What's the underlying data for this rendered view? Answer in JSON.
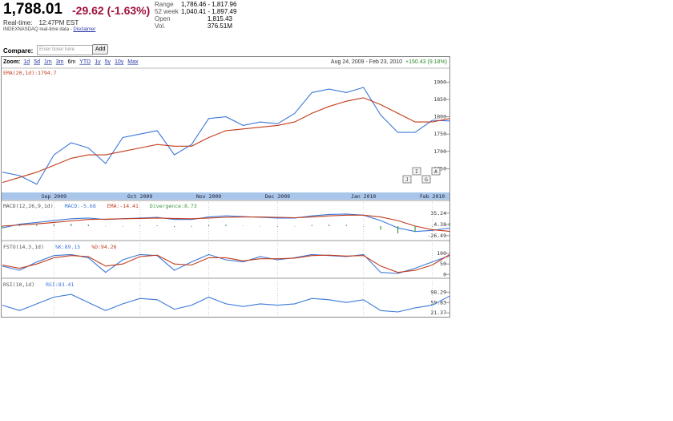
{
  "header": {
    "price": "1,788.01",
    "change": "-29.62 (-1.63%)",
    "realtime_label": "Real-time:",
    "time": "12:47PM EST",
    "source": "INDEXNASDAQ real-time data",
    "disclaimer": "Disclaimer",
    "stats": [
      [
        "Range",
        "1,786.46 - 1,817.96"
      ],
      [
        "52 week",
        "1,040.41 - 1,897.49"
      ],
      [
        "Open",
        "1,815.43"
      ],
      [
        "Vol.",
        "376.51M"
      ]
    ]
  },
  "compare": {
    "label": "Compare:",
    "placeholder": "Enter ticker here",
    "button": "Add"
  },
  "zoom": {
    "label": "Zoom:",
    "options": [
      "1d",
      "5d",
      "1m",
      "3m",
      "6m",
      "YTD",
      "1y",
      "5y",
      "10y",
      "Max"
    ],
    "range": "Aug 24, 2009 - Feb 23, 2010",
    "range_change": "+150.43 (9.18%)"
  },
  "chart_data": [
    {
      "type": "line",
      "categories": [
        null,
        null,
        null,
        "Sep 2009",
        null,
        null,
        null,
        null,
        "Oct 2009",
        null,
        null,
        null,
        "Nov 2009",
        null,
        null,
        null,
        "Dec 2009",
        null,
        null,
        null,
        null,
        "Jan 2010",
        null,
        null,
        null,
        "Feb 2010",
        null
      ],
      "series": [
        {
          "color": "#3c78d8",
          "values": [
            1640,
            1630,
            1605,
            1690,
            1725,
            1710,
            1665,
            1740,
            1750,
            1760,
            1690,
            1720,
            1795,
            1800,
            1775,
            1785,
            1780,
            1810,
            1870,
            1880,
            1870,
            1885,
            1805,
            1755,
            1755,
            1790,
            1788
          ]
        },
        {
          "name": "EMA(20,1d):1794.7",
          "color": "#c23b1c",
          "values": [
            1610,
            1625,
            1640,
            1660,
            1680,
            1690,
            1690,
            1700,
            1710,
            1720,
            1715,
            1715,
            1740,
            1760,
            1765,
            1770,
            1775,
            1785,
            1810,
            1830,
            1845,
            1855,
            1835,
            1810,
            1785,
            1785,
            1794.7
          ]
        }
      ],
      "ylim": [
        1586,
        1922
      ],
      "yticks": [
        1650,
        1700,
        1750,
        1800,
        1850,
        1900
      ],
      "annotations": [
        "J",
        "I",
        "G",
        "A"
      ]
    },
    {
      "type": "line",
      "title": "MACD(12,26,9,1d)",
      "series": [
        {
          "name": "MACD:-5.68",
          "color": "#3c78d8",
          "values": [
            -5,
            5,
            10,
            15,
            20,
            22,
            18,
            20,
            22,
            24,
            18,
            18,
            25,
            28,
            26,
            24,
            22,
            22,
            28,
            32,
            33,
            30,
            15,
            -5,
            -15,
            -12,
            -5.68
          ]
        },
        {
          "name": "EMA:-14.41",
          "color": "#c23b1c",
          "values": [
            0,
            3,
            6,
            10,
            14,
            18,
            19,
            20,
            21,
            22,
            21,
            20,
            22,
            24,
            25,
            25,
            24,
            23,
            25,
            28,
            30,
            30,
            25,
            15,
            0,
            -10,
            -14.41
          ]
        },
        {
          "name": "Divergence:8.73",
          "color": "#3a9a3a",
          "type": "bar",
          "values": [
            -5,
            2,
            4,
            5,
            6,
            4,
            -1,
            0,
            1,
            2,
            -3,
            -2,
            3,
            4,
            1,
            -1,
            -2,
            -1,
            3,
            4,
            3,
            0,
            -10,
            -20,
            -15,
            -2,
            8.73
          ]
        }
      ],
      "ylim": [
        -40,
        66
      ],
      "yticks": [
        -26.49,
        4.38,
        35.24
      ]
    },
    {
      "type": "line",
      "title": "FSTO(14,3,1d)",
      "series": [
        {
          "name": "%K:89.15",
          "color": "#3c78d8",
          "values": [
            40,
            20,
            60,
            90,
            95,
            80,
            10,
            70,
            95,
            90,
            20,
            60,
            95,
            70,
            60,
            85,
            70,
            80,
            95,
            90,
            85,
            95,
            10,
            5,
            30,
            60,
            89.15
          ]
        },
        {
          "name": "%D:94.26",
          "color": "#c23b1c",
          "values": [
            45,
            30,
            50,
            80,
            90,
            85,
            40,
            50,
            85,
            92,
            50,
            45,
            80,
            80,
            65,
            75,
            75,
            78,
            90,
            92,
            88,
            90,
            40,
            10,
            20,
            45,
            94.26
          ]
        }
      ],
      "ylim": [
        -14,
        150
      ],
      "yticks": [
        0,
        50,
        100
      ]
    },
    {
      "type": "line",
      "title": "RSI(10,1d)",
      "series": [
        {
          "name": "RSI:83.41",
          "color": "#3c78d8",
          "values": [
            50,
            30,
            55,
            80,
            90,
            60,
            30,
            55,
            75,
            70,
            35,
            50,
            80,
            55,
            45,
            55,
            50,
            55,
            75,
            70,
            60,
            70,
            30,
            25,
            40,
            50,
            83.41
          ]
        }
      ],
      "ylim": [
        7,
        141
      ],
      "yticks": [
        21.37,
        59.83,
        98.29
      ]
    }
  ]
}
